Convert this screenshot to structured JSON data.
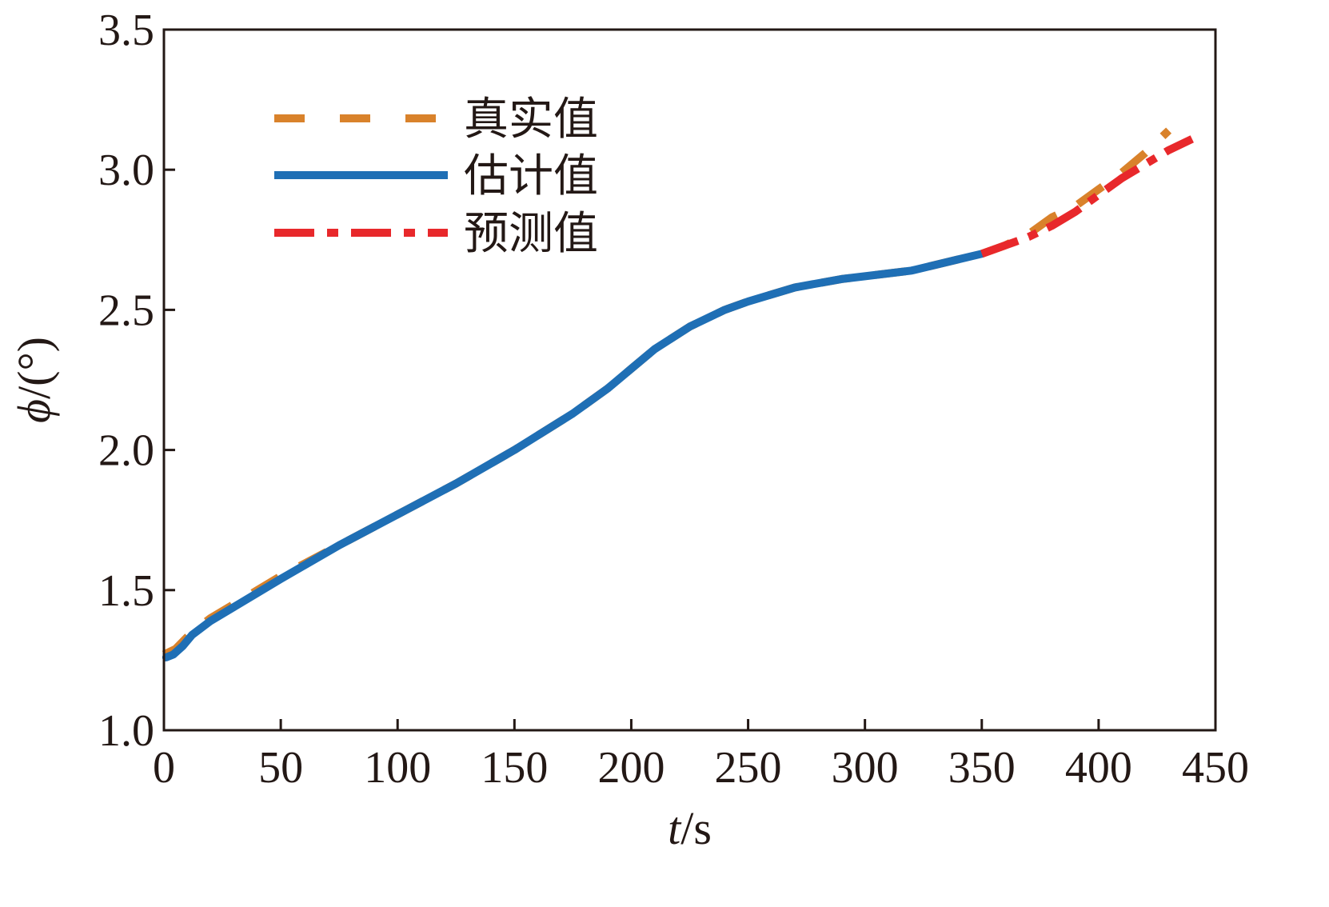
{
  "chart_data": {
    "type": "line",
    "xlabel": {
      "italic": "t",
      "rest": "/s"
    },
    "ylabel": {
      "italic": "ϕ",
      "rest": "/(°)"
    },
    "xlim": [
      0,
      450
    ],
    "ylim": [
      1.0,
      3.5
    ],
    "xticks": [
      0,
      50,
      100,
      150,
      200,
      250,
      300,
      350,
      400,
      450
    ],
    "xtick_labels": [
      "0",
      "50",
      "100",
      "150",
      "200",
      "250",
      "300",
      "350",
      "400",
      "450"
    ],
    "yticks": [
      1.0,
      1.5,
      2.0,
      2.5,
      3.0,
      3.5
    ],
    "ytick_labels": [
      "1.0",
      "1.5",
      "2.0",
      "2.5",
      "3.0",
      "3.5"
    ],
    "grid": false,
    "legend_position": "top-left",
    "series": [
      {
        "key": "true",
        "name": "真实值",
        "color": "#D9822B",
        "style": "dashed",
        "x": [
          0,
          5,
          12,
          20,
          30,
          40,
          50,
          75,
          100,
          125,
          150,
          175,
          190,
          200,
          210,
          225,
          240,
          250,
          270,
          290,
          300,
          320,
          340,
          350,
          360,
          370,
          380,
          390,
          400,
          410,
          420,
          430
        ],
        "y": [
          1.27,
          1.29,
          1.35,
          1.4,
          1.45,
          1.5,
          1.55,
          1.66,
          1.77,
          1.88,
          2.0,
          2.13,
          2.22,
          2.29,
          2.36,
          2.44,
          2.5,
          2.53,
          2.58,
          2.61,
          2.62,
          2.64,
          2.68,
          2.7,
          2.73,
          2.77,
          2.83,
          2.87,
          2.93,
          2.99,
          3.06,
          3.14
        ]
      },
      {
        "key": "estimate",
        "name": "估计值",
        "color": "#1F6FB5",
        "style": "solid",
        "x": [
          1,
          4,
          8,
          12,
          20,
          30,
          40,
          50,
          75,
          100,
          125,
          150,
          175,
          190,
          200,
          210,
          225,
          240,
          250,
          270,
          290,
          300,
          320,
          340,
          350
        ],
        "y": [
          1.26,
          1.27,
          1.3,
          1.34,
          1.39,
          1.44,
          1.49,
          1.54,
          1.66,
          1.77,
          1.88,
          2.0,
          2.13,
          2.22,
          2.29,
          2.36,
          2.44,
          2.5,
          2.53,
          2.58,
          2.61,
          2.62,
          2.64,
          2.68,
          2.7
        ]
      },
      {
        "key": "prediction",
        "name": "预测值",
        "color": "#E8282B",
        "style": "dashdot",
        "x": [
          350,
          360,
          370,
          380,
          390,
          400,
          410,
          420,
          430,
          440
        ],
        "y": [
          2.7,
          2.73,
          2.76,
          2.8,
          2.85,
          2.91,
          2.97,
          3.02,
          3.07,
          3.11
        ]
      }
    ]
  }
}
